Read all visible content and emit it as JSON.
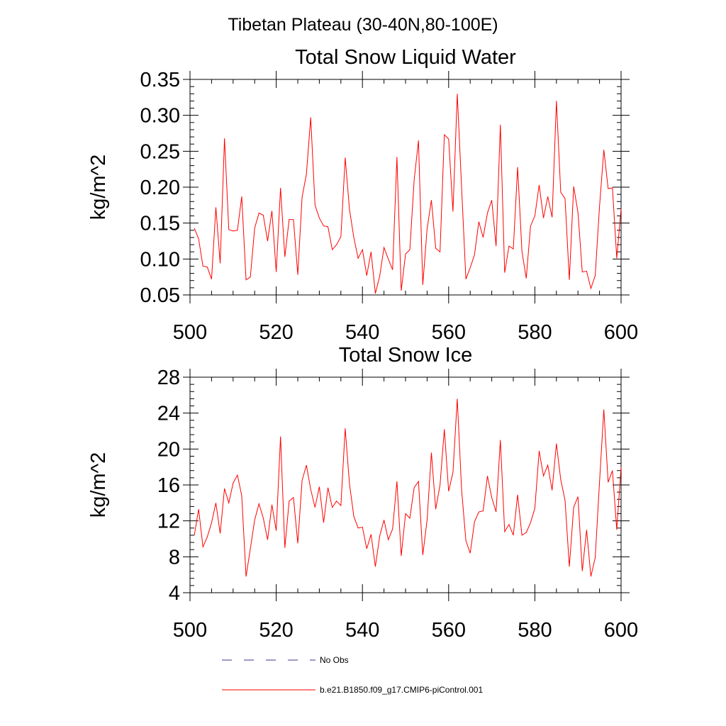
{
  "figure": {
    "main_title": "Tibetan Plateau (30-40N,80-100E)"
  },
  "chart_data": [
    {
      "type": "line",
      "title": "Total Snow Liquid Water",
      "xlabel": "",
      "ylabel": "kg/m^2",
      "xlim": [
        500,
        600
      ],
      "ylim": [
        0.05,
        0.35
      ],
      "xticks": [
        500,
        520,
        540,
        560,
        580,
        600
      ],
      "xtick_labels": [
        "500",
        "520",
        "540",
        "560",
        "580",
        "600"
      ],
      "yticks": [
        0.05,
        0.1,
        0.15,
        0.2,
        0.25,
        0.3,
        0.35
      ],
      "ytick_labels": [
        "0.05",
        "0.10",
        "0.15",
        "0.20",
        "0.25",
        "0.30",
        "0.35"
      ],
      "series": [
        {
          "name": "b.e21.B1850.f09_g17.CMIP6-piControl.001",
          "color": "#ff0000",
          "x_start": 501,
          "x_step": 1,
          "values": [
            0.143,
            0.128,
            0.09,
            0.089,
            0.072,
            0.172,
            0.094,
            0.268,
            0.141,
            0.139,
            0.14,
            0.187,
            0.071,
            0.075,
            0.143,
            0.164,
            0.161,
            0.125,
            0.167,
            0.082,
            0.199,
            0.103,
            0.155,
            0.155,
            0.078,
            0.186,
            0.218,
            0.297,
            0.175,
            0.157,
            0.146,
            0.145,
            0.113,
            0.12,
            0.131,
            0.241,
            0.169,
            0.13,
            0.101,
            0.113,
            0.077,
            0.11,
            0.052,
            0.076,
            0.116,
            0.1,
            0.085,
            0.242,
            0.056,
            0.107,
            0.113,
            0.21,
            0.265,
            0.064,
            0.142,
            0.182,
            0.115,
            0.11,
            0.273,
            0.267,
            0.166,
            0.33,
            0.2,
            0.072,
            0.088,
            0.106,
            0.152,
            0.13,
            0.164,
            0.182,
            0.118,
            0.287,
            0.081,
            0.118,
            0.114,
            0.228,
            0.111,
            0.073,
            0.146,
            0.16,
            0.203,
            0.157,
            0.187,
            0.158,
            0.32,
            0.193,
            0.184,
            0.071,
            0.201,
            0.165,
            0.082,
            0.083,
            0.059,
            0.077,
            0.173,
            0.252,
            0.198,
            0.199,
            0.101,
            0.17
          ]
        }
      ]
    },
    {
      "type": "line",
      "title": "Total Snow Ice",
      "xlabel": "",
      "ylabel": "kg/m^2",
      "xlim": [
        500,
        600
      ],
      "ylim": [
        4,
        28
      ],
      "xticks": [
        500,
        520,
        540,
        560,
        580,
        600
      ],
      "xtick_labels": [
        "500",
        "520",
        "540",
        "560",
        "580",
        "600"
      ],
      "yticks": [
        4,
        8,
        12,
        16,
        20,
        24,
        28
      ],
      "ytick_labels": [
        "4",
        "8",
        "12",
        "16",
        "20",
        "24",
        "28"
      ],
      "series": [
        {
          "name": "b.e21.B1850.f09_g17.CMIP6-piControl.001",
          "color": "#ff0000",
          "x_start": 501,
          "x_step": 1,
          "values": [
            10.4,
            13.3,
            9.1,
            10.2,
            11.8,
            14.0,
            10.6,
            15.6,
            14.0,
            16.2,
            17.1,
            14.8,
            5.8,
            8.9,
            12.1,
            13.9,
            12.3,
            9.9,
            13.8,
            10.9,
            21.4,
            9.0,
            14.2,
            14.6,
            9.5,
            16.5,
            18.2,
            15.5,
            13.5,
            15.8,
            11.8,
            15.7,
            13.5,
            14.2,
            13.7,
            22.3,
            16.1,
            12.5,
            11.2,
            11.3,
            8.9,
            10.5,
            6.9,
            10.3,
            12.1,
            9.9,
            11.1,
            16.4,
            8.1,
            12.8,
            12.3,
            15.7,
            16.4,
            8.2,
            12.1,
            19.6,
            13.3,
            16.0,
            22.2,
            15.3,
            17.4,
            25.6,
            15.5,
            9.8,
            8.4,
            11.9,
            13.0,
            13.1,
            17.0,
            14.6,
            13.0,
            21.0,
            10.8,
            11.6,
            10.4,
            14.9,
            10.4,
            10.7,
            11.8,
            13.4,
            19.8,
            17.0,
            18.2,
            15.4,
            20.6,
            16.6,
            14.3,
            6.9,
            13.5,
            14.7,
            6.4,
            11.0,
            5.8,
            7.9,
            16.3,
            24.4,
            16.3,
            17.6,
            11.0,
            18.0
          ]
        }
      ]
    }
  ],
  "legend": {
    "items": [
      {
        "label": "No Obs",
        "color": "#3a3a8c",
        "style": "dashed"
      },
      {
        "label": "b.e21.B1850.f09_g17.CMIP6-piControl.001",
        "color": "#ff0000",
        "style": "solid"
      }
    ]
  }
}
